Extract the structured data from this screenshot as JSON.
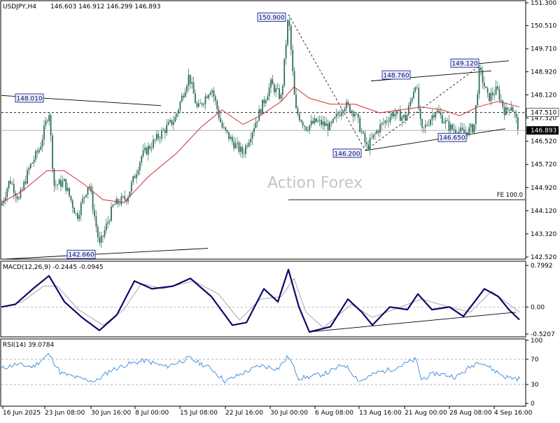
{
  "chart_data": [
    {
      "type": "candlestick",
      "title": "USDJPY,H4",
      "ohlc_header": "146.603 146.912 146.299 146.893",
      "watermark": "Action Forex",
      "ylim": [
        142.52,
        151.3
      ],
      "y_ticks": [
        "151.300",
        "150.510",
        "149.710",
        "148.920",
        "148.120",
        "147.320",
        "146.520",
        "145.720",
        "144.920",
        "144.120",
        "143.320",
        "142.520"
      ],
      "x_ticks": [
        "16 Jun 2025",
        "23 Jun 08:00",
        "30 Jun 16:00",
        "8 Jul 00:00",
        "15 Jul 08:00",
        "22 Jul 16:00",
        "30 Jul 00:00",
        "6 Aug 08:00",
        "13 Aug 16:00",
        "21 Aug 00:00",
        "28 Aug 08:00",
        "4 Sep 16:00"
      ],
      "close_path": [
        {
          "x": 0,
          "y": 144.3
        },
        {
          "x": 12,
          "y": 145.2
        },
        {
          "x": 25,
          "y": 144.5
        },
        {
          "x": 40,
          "y": 145.6
        },
        {
          "x": 55,
          "y": 146.3
        },
        {
          "x": 68,
          "y": 147.6
        },
        {
          "x": 75,
          "y": 145.0
        },
        {
          "x": 90,
          "y": 145.1
        },
        {
          "x": 108,
          "y": 143.9
        },
        {
          "x": 125,
          "y": 145.1
        },
        {
          "x": 140,
          "y": 142.9
        },
        {
          "x": 160,
          "y": 144.3
        },
        {
          "x": 180,
          "y": 144.6
        },
        {
          "x": 200,
          "y": 146.0
        },
        {
          "x": 225,
          "y": 146.7
        },
        {
          "x": 248,
          "y": 147.3
        },
        {
          "x": 268,
          "y": 148.8
        },
        {
          "x": 280,
          "y": 147.6
        },
        {
          "x": 300,
          "y": 148.4
        },
        {
          "x": 315,
          "y": 147.0
        },
        {
          "x": 330,
          "y": 146.5
        },
        {
          "x": 345,
          "y": 146.1
        },
        {
          "x": 365,
          "y": 147.3
        },
        {
          "x": 385,
          "y": 148.5
        },
        {
          "x": 400,
          "y": 148.0
        },
        {
          "x": 410,
          "y": 150.9
        },
        {
          "x": 420,
          "y": 147.6
        },
        {
          "x": 435,
          "y": 147.0
        },
        {
          "x": 450,
          "y": 147.2
        },
        {
          "x": 470,
          "y": 147.0
        },
        {
          "x": 490,
          "y": 147.8
        },
        {
          "x": 505,
          "y": 147.5
        },
        {
          "x": 522,
          "y": 146.3
        },
        {
          "x": 540,
          "y": 147.0
        },
        {
          "x": 560,
          "y": 147.5
        },
        {
          "x": 578,
          "y": 147.3
        },
        {
          "x": 592,
          "y": 148.6
        },
        {
          "x": 600,
          "y": 146.8
        },
        {
          "x": 620,
          "y": 147.6
        },
        {
          "x": 640,
          "y": 147.0
        },
        {
          "x": 660,
          "y": 146.8
        },
        {
          "x": 675,
          "y": 147.0
        },
        {
          "x": 683,
          "y": 149.0
        },
        {
          "x": 695,
          "y": 148.0
        },
        {
          "x": 708,
          "y": 148.3
        },
        {
          "x": 720,
          "y": 147.5
        },
        {
          "x": 728,
          "y": 147.8
        },
        {
          "x": 740,
          "y": 146.893
        }
      ],
      "moving_average": [
        {
          "x": 0,
          "y": 144.4
        },
        {
          "x": 30,
          "y": 144.8
        },
        {
          "x": 65,
          "y": 145.5
        },
        {
          "x": 90,
          "y": 145.5
        },
        {
          "x": 120,
          "y": 145.0
        },
        {
          "x": 145,
          "y": 144.5
        },
        {
          "x": 175,
          "y": 144.4
        },
        {
          "x": 210,
          "y": 145.3
        },
        {
          "x": 250,
          "y": 146.1
        },
        {
          "x": 285,
          "y": 147.0
        },
        {
          "x": 315,
          "y": 147.6
        },
        {
          "x": 345,
          "y": 147.1
        },
        {
          "x": 370,
          "y": 147.4
        },
        {
          "x": 400,
          "y": 147.9
        },
        {
          "x": 418,
          "y": 148.4
        },
        {
          "x": 440,
          "y": 148.0
        },
        {
          "x": 470,
          "y": 147.8
        },
        {
          "x": 505,
          "y": 147.8
        },
        {
          "x": 540,
          "y": 147.5
        },
        {
          "x": 570,
          "y": 147.6
        },
        {
          "x": 600,
          "y": 147.7
        },
        {
          "x": 630,
          "y": 147.6
        },
        {
          "x": 655,
          "y": 147.4
        },
        {
          "x": 680,
          "y": 147.7
        },
        {
          "x": 710,
          "y": 147.9
        },
        {
          "x": 740,
          "y": 147.7
        }
      ],
      "price_labels": [
        {
          "text": "150.900",
          "x": 410,
          "y": 150.9
        },
        {
          "text": "148.010",
          "x": 68,
          "y": 148.01
        },
        {
          "text": "148.760",
          "x": 590,
          "y": 148.76
        },
        {
          "text": "149.120",
          "x": 680,
          "y": 149.12
        },
        {
          "text": "146.200",
          "x": 520,
          "y": 146.2
        },
        {
          "text": "146.650",
          "x": 640,
          "y": 146.65
        },
        {
          "text": "142.660",
          "x": 140,
          "y": 142.66
        }
      ],
      "horizontal_levels": [
        {
          "text": "147.510",
          "y": 147.51,
          "style": "dashed"
        },
        {
          "text": "146.893",
          "y": 146.893,
          "style": "solid-grey"
        }
      ],
      "fe_level": {
        "text": "FE 100.0",
        "y": 144.5
      },
      "trendlines": [
        {
          "from": {
            "x": 0,
            "y": 148.1
          },
          "to": {
            "x": 228,
            "y": 147.75
          }
        },
        {
          "from": {
            "x": 5,
            "y": 142.45
          },
          "to": {
            "x": 295,
            "y": 142.82
          }
        },
        {
          "from": {
            "x": 528,
            "y": 148.6
          },
          "to": {
            "x": 700,
            "y": 148.95
          }
        },
        {
          "from": {
            "x": 520,
            "y": 146.2
          },
          "to": {
            "x": 720,
            "y": 146.95
          }
        },
        {
          "from": {
            "x": 660,
            "y": 149.15
          },
          "to": {
            "x": 725,
            "y": 149.3
          }
        }
      ],
      "dashed_projections": [
        {
          "from": {
            "x": 410,
            "y": 150.9
          },
          "to": {
            "x": 520,
            "y": 146.2
          }
        },
        {
          "from": {
            "x": 520,
            "y": 146.2
          },
          "to": {
            "x": 683,
            "y": 149.12
          }
        }
      ],
      "colors": {
        "candle": "#2e6e5e",
        "moving_average": "#d32f2f",
        "label_border": "#0a0a8a",
        "label_fill": "#e8eefc"
      }
    },
    {
      "type": "line",
      "title": "MACD(12,26,9) -0.2445 -0.0945",
      "ylim": [
        -0.5207,
        0.7992
      ],
      "y_ticks": [
        "0.7992",
        "0.00",
        "-0.5207"
      ],
      "macd": [
        {
          "x": 0,
          "y": 0.0
        },
        {
          "x": 20,
          "y": 0.05
        },
        {
          "x": 45,
          "y": 0.35
        },
        {
          "x": 68,
          "y": 0.6
        },
        {
          "x": 90,
          "y": 0.1
        },
        {
          "x": 115,
          "y": -0.2
        },
        {
          "x": 140,
          "y": -0.45
        },
        {
          "x": 165,
          "y": -0.15
        },
        {
          "x": 190,
          "y": 0.5
        },
        {
          "x": 215,
          "y": 0.35
        },
        {
          "x": 245,
          "y": 0.4
        },
        {
          "x": 270,
          "y": 0.55
        },
        {
          "x": 300,
          "y": 0.2
        },
        {
          "x": 330,
          "y": -0.35
        },
        {
          "x": 350,
          "y": -0.3
        },
        {
          "x": 375,
          "y": 0.35
        },
        {
          "x": 395,
          "y": 0.1
        },
        {
          "x": 410,
          "y": 0.72
        },
        {
          "x": 425,
          "y": 0.0
        },
        {
          "x": 440,
          "y": -0.48
        },
        {
          "x": 470,
          "y": -0.38
        },
        {
          "x": 495,
          "y": 0.15
        },
        {
          "x": 515,
          "y": -0.1
        },
        {
          "x": 530,
          "y": -0.35
        },
        {
          "x": 555,
          "y": 0.0
        },
        {
          "x": 580,
          "y": -0.05
        },
        {
          "x": 595,
          "y": 0.25
        },
        {
          "x": 615,
          "y": -0.05
        },
        {
          "x": 640,
          "y": 0.0
        },
        {
          "x": 660,
          "y": -0.18
        },
        {
          "x": 690,
          "y": 0.35
        },
        {
          "x": 710,
          "y": 0.2
        },
        {
          "x": 725,
          "y": -0.05
        },
        {
          "x": 740,
          "y": -0.2445
        }
      ],
      "signal": [
        {
          "x": 0,
          "y": 0.0
        },
        {
          "x": 30,
          "y": 0.1
        },
        {
          "x": 60,
          "y": 0.4
        },
        {
          "x": 80,
          "y": 0.4
        },
        {
          "x": 110,
          "y": -0.05
        },
        {
          "x": 145,
          "y": -0.35
        },
        {
          "x": 175,
          "y": -0.05
        },
        {
          "x": 200,
          "y": 0.45
        },
        {
          "x": 230,
          "y": 0.35
        },
        {
          "x": 275,
          "y": 0.5
        },
        {
          "x": 310,
          "y": 0.25
        },
        {
          "x": 340,
          "y": -0.25
        },
        {
          "x": 370,
          "y": 0.15
        },
        {
          "x": 400,
          "y": 0.2
        },
        {
          "x": 418,
          "y": 0.55
        },
        {
          "x": 435,
          "y": -0.1
        },
        {
          "x": 460,
          "y": -0.4
        },
        {
          "x": 500,
          "y": 0.05
        },
        {
          "x": 530,
          "y": -0.2
        },
        {
          "x": 560,
          "y": -0.05
        },
        {
          "x": 600,
          "y": 0.15
        },
        {
          "x": 640,
          "y": 0.0
        },
        {
          "x": 670,
          "y": -0.1
        },
        {
          "x": 700,
          "y": 0.3
        },
        {
          "x": 740,
          "y": -0.0945
        }
      ],
      "trendline": {
        "from": {
          "x": 440,
          "y": -0.48
        },
        "to": {
          "x": 735,
          "y": -0.1
        }
      },
      "colors": {
        "macd": "#0a0a6e",
        "signal": "#9e9e9e"
      }
    },
    {
      "type": "line",
      "title": "RSI(14) 39.0784",
      "ylim": [
        0,
        100
      ],
      "y_ticks": [
        "100",
        "70",
        "30",
        "0"
      ],
      "levels": [
        70,
        30
      ],
      "rsi": [
        {
          "x": 0,
          "y": 55
        },
        {
          "x": 20,
          "y": 62
        },
        {
          "x": 45,
          "y": 58
        },
        {
          "x": 68,
          "y": 78
        },
        {
          "x": 85,
          "y": 48
        },
        {
          "x": 110,
          "y": 40
        },
        {
          "x": 135,
          "y": 35
        },
        {
          "x": 155,
          "y": 52
        },
        {
          "x": 180,
          "y": 62
        },
        {
          "x": 205,
          "y": 68
        },
        {
          "x": 235,
          "y": 58
        },
        {
          "x": 268,
          "y": 72
        },
        {
          "x": 300,
          "y": 55
        },
        {
          "x": 320,
          "y": 35
        },
        {
          "x": 345,
          "y": 48
        },
        {
          "x": 370,
          "y": 60
        },
        {
          "x": 395,
          "y": 55
        },
        {
          "x": 410,
          "y": 75
        },
        {
          "x": 425,
          "y": 40
        },
        {
          "x": 440,
          "y": 42
        },
        {
          "x": 465,
          "y": 48
        },
        {
          "x": 490,
          "y": 62
        },
        {
          "x": 512,
          "y": 35
        },
        {
          "x": 535,
          "y": 48
        },
        {
          "x": 560,
          "y": 55
        },
        {
          "x": 592,
          "y": 70
        },
        {
          "x": 600,
          "y": 38
        },
        {
          "x": 620,
          "y": 48
        },
        {
          "x": 650,
          "y": 42
        },
        {
          "x": 683,
          "y": 68
        },
        {
          "x": 700,
          "y": 55
        },
        {
          "x": 720,
          "y": 42
        },
        {
          "x": 740,
          "y": 39.0784
        }
      ],
      "color": "#1e7bd8"
    }
  ]
}
